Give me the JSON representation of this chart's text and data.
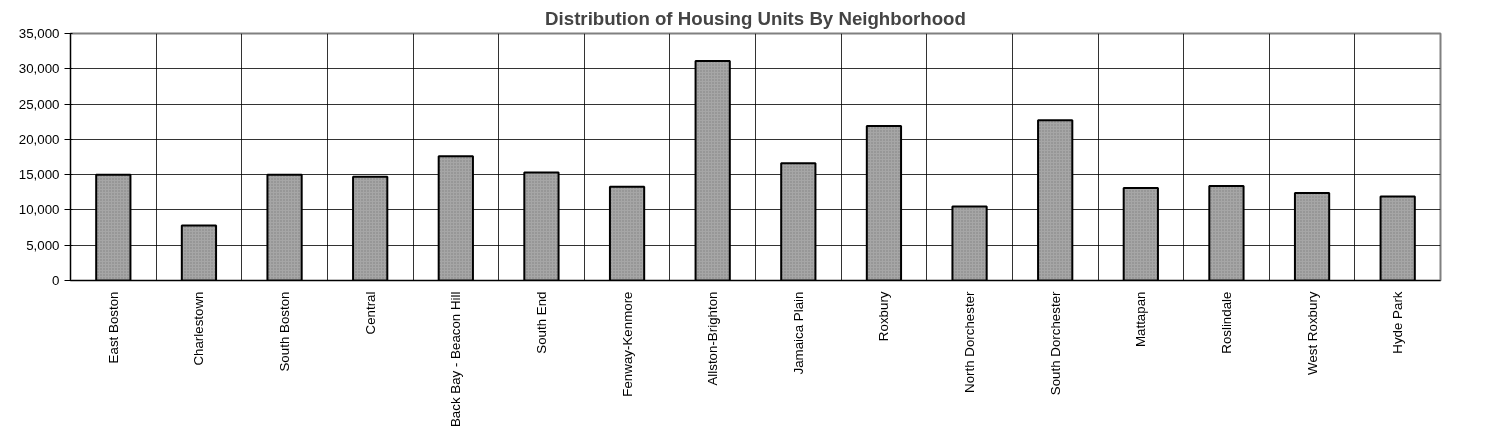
{
  "chart_data": {
    "type": "bar",
    "title": "Distribution of Housing Units By Neighborhood",
    "categories": [
      "East Boston",
      "Charlestown",
      "South Boston",
      "Central",
      "Back Bay - Beacon Hill",
      "South End",
      "Fenway-Kenmore",
      "Allston-Brighton",
      "Jamaica Plain",
      "Roxbury",
      "North Dorchester",
      "South Dorchester",
      "Mattapan",
      "Roslindale",
      "West Roxbury",
      "Hyde Park"
    ],
    "values": [
      15000,
      7800,
      15000,
      14700,
      17600,
      15300,
      13300,
      31100,
      16600,
      21900,
      10500,
      22700,
      13100,
      13400,
      12400,
      11900
    ],
    "color": "#a6a6a6",
    "ylim": [
      0,
      35000
    ],
    "yticks": [
      {
        "value": 0,
        "label": "0"
      },
      {
        "value": 5000,
        "label": "5,000"
      },
      {
        "value": 10000,
        "label": "10,000"
      },
      {
        "value": 15000,
        "label": "15,000"
      },
      {
        "value": 20000,
        "label": "20,000"
      },
      {
        "value": 25000,
        "label": "25,000"
      },
      {
        "value": 30000,
        "label": "30,000"
      },
      {
        "value": 35000,
        "label": "35,000"
      }
    ],
    "grid": true
  }
}
